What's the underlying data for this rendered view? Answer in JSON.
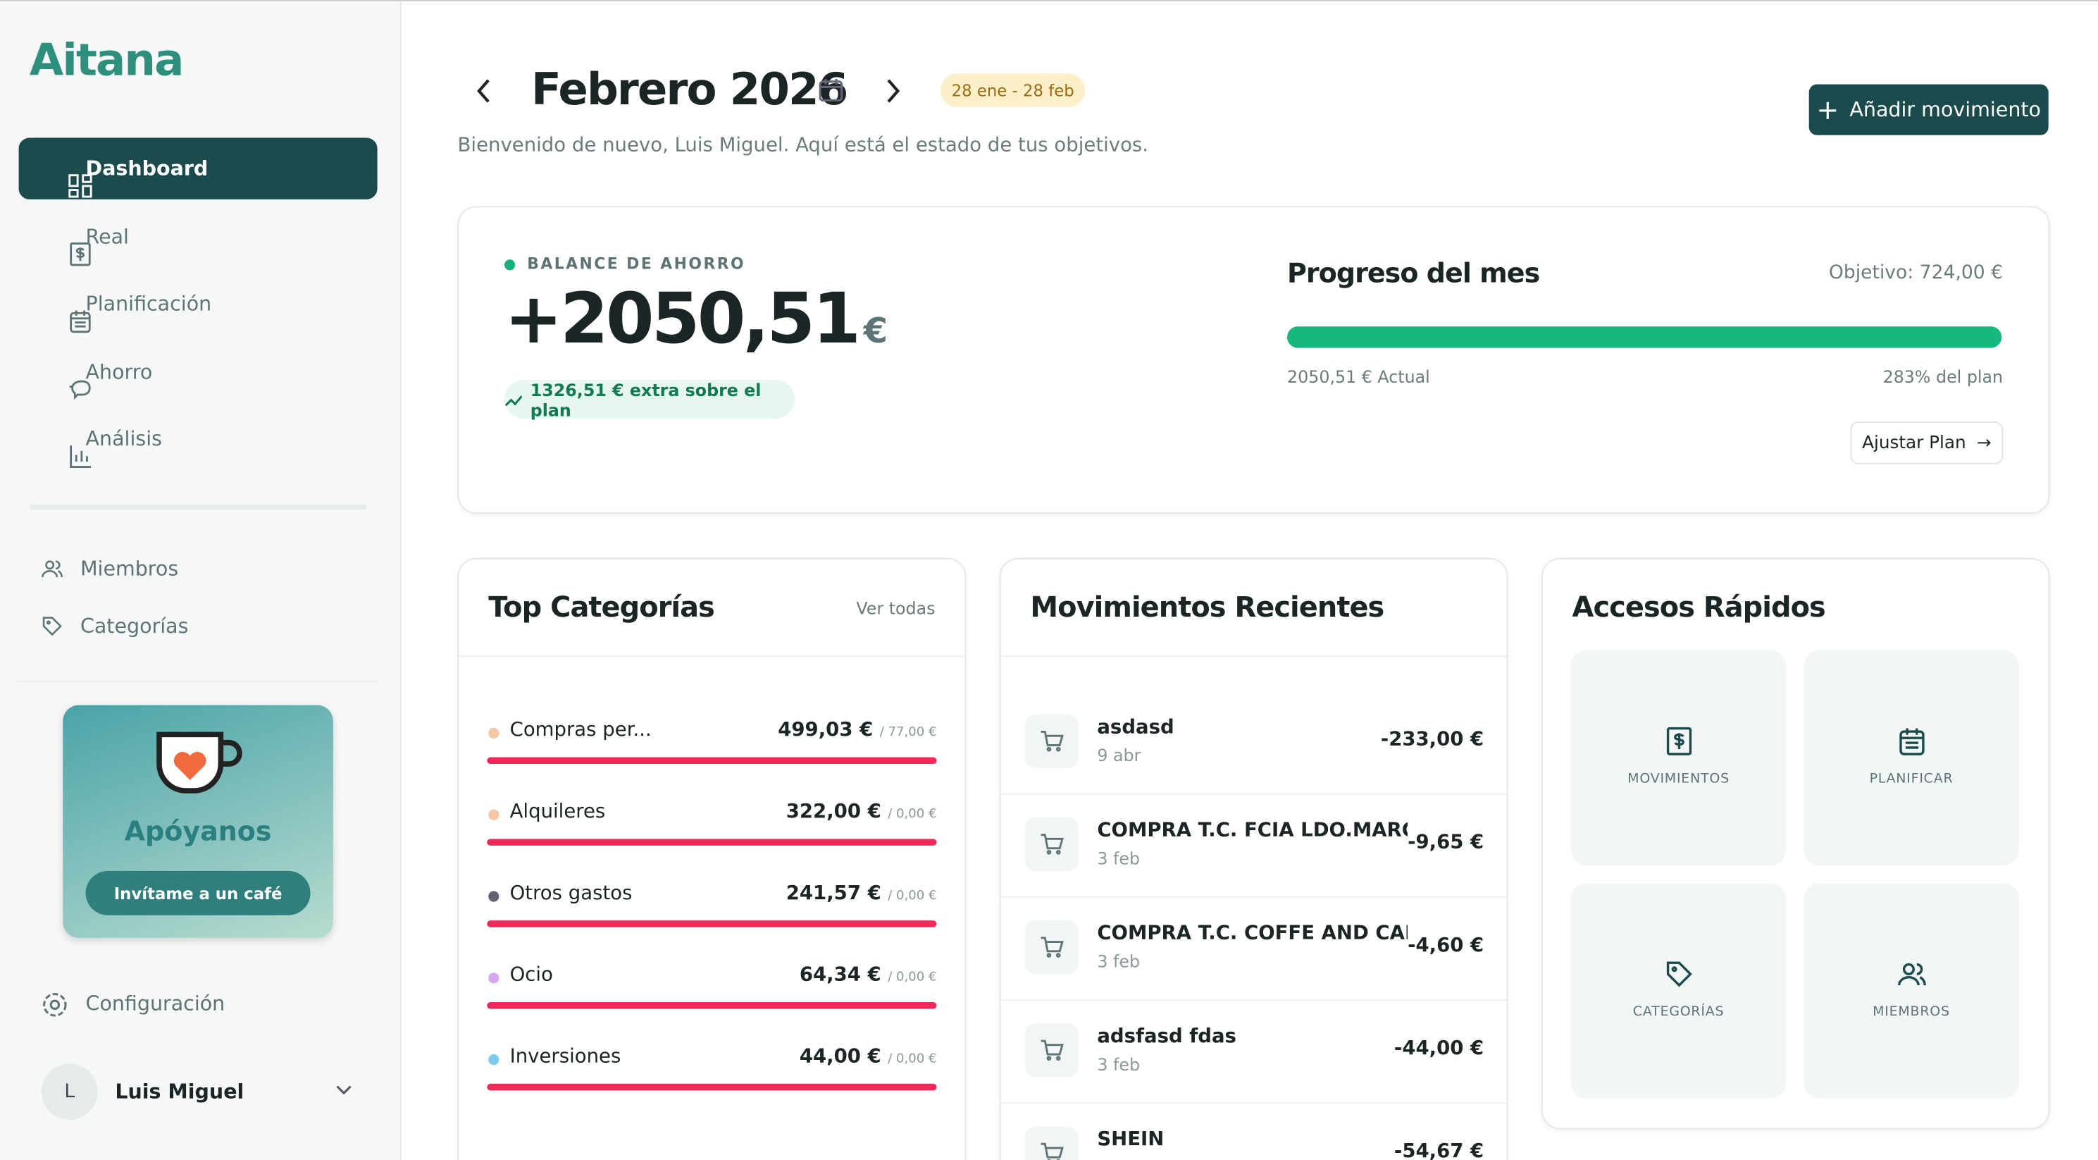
{
  "sidebar": {
    "logo": "Aitana",
    "nav": [
      "Dashboard",
      "Real",
      "Planificación",
      "Ahorro",
      "Análisis"
    ],
    "secondary": [
      "Miembros",
      "Categorías"
    ],
    "promo": {
      "title": "Apóyanos",
      "button": "Invítame a un café"
    },
    "settings": "Configuración",
    "user": {
      "initial": "L",
      "name": "Luis Miguel"
    }
  },
  "header": {
    "title": "Febrero 2026",
    "range": "28 ene - 28 feb",
    "subtitle": "Bienvenido de nuevo, Luis Miguel. Aquí está el estado de tus objetivos.",
    "action": "Añadir movimiento"
  },
  "balance": {
    "label": "BALANCE DE AHORRO",
    "amount": "+2050,51",
    "currency": "€",
    "extra": "1326,51 € extra sobre el plan"
  },
  "progress": {
    "title": "Progreso del mes",
    "target": "Objetivo: 724,00 €",
    "actual": "2050,51 € Actual",
    "percent": "283% del plan",
    "button": "Ajustar Plan"
  },
  "categories": {
    "title": "Top Categorías",
    "link": "Ver todas",
    "rows": [
      {
        "name": "Compras per...",
        "amount": "499,03 €",
        "budget": "/ 77,00 €",
        "color": "#f6c7a6"
      },
      {
        "name": "Alquileres",
        "amount": "322,00 €",
        "budget": "/ 0,00 €",
        "color": "#f6c7a6"
      },
      {
        "name": "Otros gastos",
        "amount": "241,57 €",
        "budget": "/ 0,00 €",
        "color": "#5f6470"
      },
      {
        "name": "Ocio",
        "amount": "64,34 €",
        "budget": "/ 0,00 €",
        "color": "#d6a6f0"
      },
      {
        "name": "Inversiones",
        "amount": "44,00 €",
        "budget": "/ 0,00 €",
        "color": "#7ccbea"
      }
    ]
  },
  "movements": {
    "title": "Movimientos Recientes",
    "rows": [
      {
        "name": "asdasd",
        "date": "9 abr",
        "amount": "-233,00 €"
      },
      {
        "name": "COMPRA T.C. FCIA LDO.MARCO ...",
        "date": "3 feb",
        "amount": "-9,65 €"
      },
      {
        "name": "COMPRA T.C. COFFE AND CAKE",
        "date": "3 feb",
        "amount": "-4,60 €"
      },
      {
        "name": "adsfasd fdas",
        "date": "3 feb",
        "amount": "-44,00 €"
      },
      {
        "name": "SHEIN",
        "date": null,
        "amount": "-54,67 €"
      }
    ]
  },
  "shortcuts": {
    "title": "Accesos Rápidos",
    "items": [
      "MOVIMIENTOS",
      "PLANIFICAR",
      "CATEGORÍAS",
      "MIEMBROS"
    ]
  }
}
